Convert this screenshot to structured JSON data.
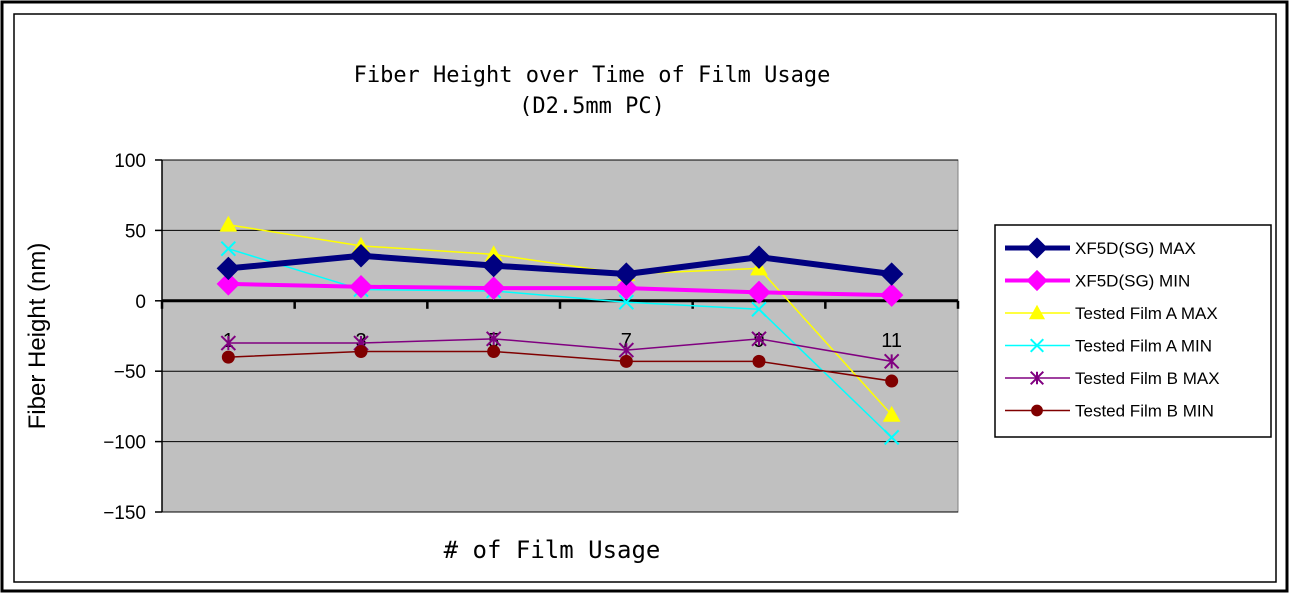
{
  "chart_data": {
    "type": "line",
    "title": "Fiber Height over Time of Film Usage",
    "subtitle": "(D2.5mm PC)",
    "xlabel": "# of Film Usage",
    "ylabel": "Fiber Height (nm)",
    "ylim": [
      -150,
      100
    ],
    "yticks": [
      100,
      50,
      0,
      -50,
      -100,
      -150
    ],
    "ytick_labels": [
      "100",
      "50",
      "0",
      "−50",
      "−100",
      "−150"
    ],
    "x": [
      1,
      3,
      5,
      7,
      9,
      11
    ],
    "x_tick_labels": [
      "1",
      "3",
      "5",
      "7",
      "9",
      "11"
    ],
    "grid": true,
    "legend_position": "right",
    "plot_background": "#c0c0c0",
    "series": [
      {
        "name": "XF5D(SG) MAX",
        "values": [
          23,
          32,
          25,
          19,
          31,
          19
        ],
        "color": "#000080",
        "marker": "diamond",
        "width": 6
      },
      {
        "name": "XF5D(SG) MIN",
        "values": [
          12,
          10,
          9,
          9,
          6,
          4
        ],
        "color": "#ff00ff",
        "marker": "diamond",
        "width": 4
      },
      {
        "name": "Tested Film A MAX",
        "values": [
          54,
          39,
          33,
          19,
          23,
          -81
        ],
        "color": "#ffff00",
        "marker": "triangle",
        "width": 1.5
      },
      {
        "name": "Tested Film A MIN",
        "values": [
          37,
          8,
          7,
          -1,
          -6,
          -97
        ],
        "color": "#00ffff",
        "marker": "x",
        "width": 1.5
      },
      {
        "name": "Tested Film B MAX",
        "values": [
          -30,
          -30,
          -27,
          -35,
          -27,
          -43
        ],
        "color": "#800080",
        "marker": "star",
        "width": 1.5
      },
      {
        "name": "Tested Film B MIN",
        "values": [
          -40,
          -36,
          -36,
          -43,
          -43,
          -57
        ],
        "color": "#800000",
        "marker": "circle",
        "width": 1.5
      }
    ]
  }
}
